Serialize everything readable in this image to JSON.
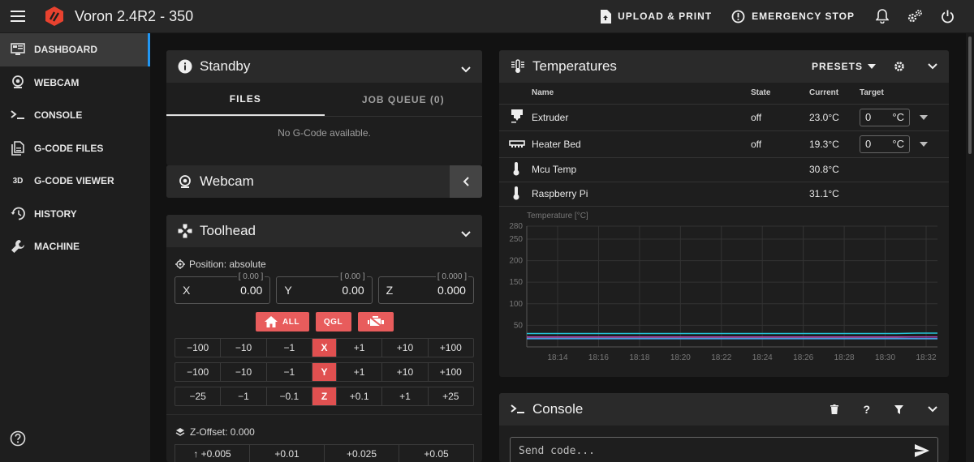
{
  "app": {
    "title": "Voron 2.4R2 - 350",
    "accent": "#e85c5c",
    "active_color": "#2196f3"
  },
  "topbar": {
    "upload_label": "UPLOAD & PRINT",
    "emergency_label": "EMERGENCY STOP"
  },
  "sidebar": {
    "items": [
      {
        "label": "DASHBOARD",
        "icon": "monitor-dashboard-icon"
      },
      {
        "label": "WEBCAM",
        "icon": "webcam-icon"
      },
      {
        "label": "CONSOLE",
        "icon": "console-icon"
      },
      {
        "label": "G-CODE FILES",
        "icon": "file-document-icon"
      },
      {
        "label": "G-CODE VIEWER",
        "icon": "3d-icon",
        "glyph": "3D"
      },
      {
        "label": "HISTORY",
        "icon": "history-icon"
      },
      {
        "label": "MACHINE",
        "icon": "wrench-icon"
      }
    ]
  },
  "standby": {
    "title": "Standby",
    "tab_files": "FILES",
    "tab_queue": "JOB QUEUE (0)",
    "empty": "No G-Code available."
  },
  "webcam": {
    "title": "Webcam"
  },
  "toolhead": {
    "title": "Toolhead",
    "position_label": "Position: absolute",
    "x": {
      "axis": "X",
      "value": "0.00",
      "hint": "[ 0.00 ]"
    },
    "y": {
      "axis": "Y",
      "value": "0.00",
      "hint": "[ 0.00 ]"
    },
    "z": {
      "axis": "Z",
      "value": "0.000",
      "hint": "[ 0.000 ]"
    },
    "home_all": "ALL",
    "qgl": "QGL",
    "jog_x": [
      "−100",
      "−10",
      "−1",
      "X",
      "+1",
      "+10",
      "+100"
    ],
    "jog_y": [
      "−100",
      "−10",
      "−1",
      "Y",
      "+1",
      "+10",
      "+100"
    ],
    "jog_z": [
      "−25",
      "−1",
      "−0.1",
      "Z",
      "+0.1",
      "+1",
      "+25"
    ],
    "zoffset_label": "Z-Offset: 0.000",
    "zoffset_steps": [
      "↑ +0.005",
      "+0.01",
      "+0.025",
      "+0.05"
    ]
  },
  "temperatures": {
    "title": "Temperatures",
    "presets": "PRESETS",
    "headers": {
      "name": "Name",
      "state": "State",
      "current": "Current",
      "target": "Target"
    },
    "rows": [
      {
        "name": "Extruder",
        "state": "off",
        "current": "23.0°C",
        "target": "0",
        "unit": "°C",
        "icon": "printer-nozzle-icon"
      },
      {
        "name": "Heater Bed",
        "state": "off",
        "current": "19.3°C",
        "target": "0",
        "unit": "°C",
        "icon": "radiator-icon"
      },
      {
        "name": "Mcu Temp",
        "state": "",
        "current": "30.8°C",
        "icon": "thermometer-icon"
      },
      {
        "name": "Raspberry Pi",
        "state": "",
        "current": "31.1°C",
        "icon": "thermometer-icon"
      }
    ]
  },
  "chart_data": {
    "type": "line",
    "ylabel": "Temperature [°C]",
    "ylim": [
      0,
      280
    ],
    "yticks": [
      50,
      100,
      150,
      200,
      250,
      280
    ],
    "xticks": [
      "18:14",
      "18:16",
      "18:18",
      "18:20",
      "18:22",
      "18:24",
      "18:26",
      "18:28",
      "18:30",
      "18:32"
    ],
    "grid": true,
    "series": [
      {
        "color": "#26c6da",
        "values": [
          31,
          31,
          31,
          31,
          31,
          31,
          31,
          31,
          31,
          31,
          31,
          31,
          31,
          31,
          31,
          31,
          31,
          31,
          31,
          32,
          32
        ]
      },
      {
        "color": "#ab47bc",
        "values": [
          23,
          23,
          23,
          23,
          23,
          23,
          23,
          23,
          23,
          23,
          23,
          23,
          23,
          23,
          23,
          23,
          23,
          23,
          23,
          23,
          23
        ]
      },
      {
        "color": "#8d6e63",
        "values": [
          20,
          20,
          20,
          20,
          20,
          20,
          20,
          20,
          20,
          20,
          20,
          20,
          20,
          20,
          20,
          20,
          20,
          20,
          20,
          19,
          19
        ]
      },
      {
        "color": "#42a5f5",
        "values": [
          19,
          19,
          19,
          19,
          19,
          19,
          19,
          19,
          19,
          19,
          19,
          19,
          19,
          19,
          19,
          19,
          19,
          19,
          19,
          19,
          19
        ]
      }
    ]
  },
  "console": {
    "title": "Console",
    "placeholder": "Send code..."
  }
}
